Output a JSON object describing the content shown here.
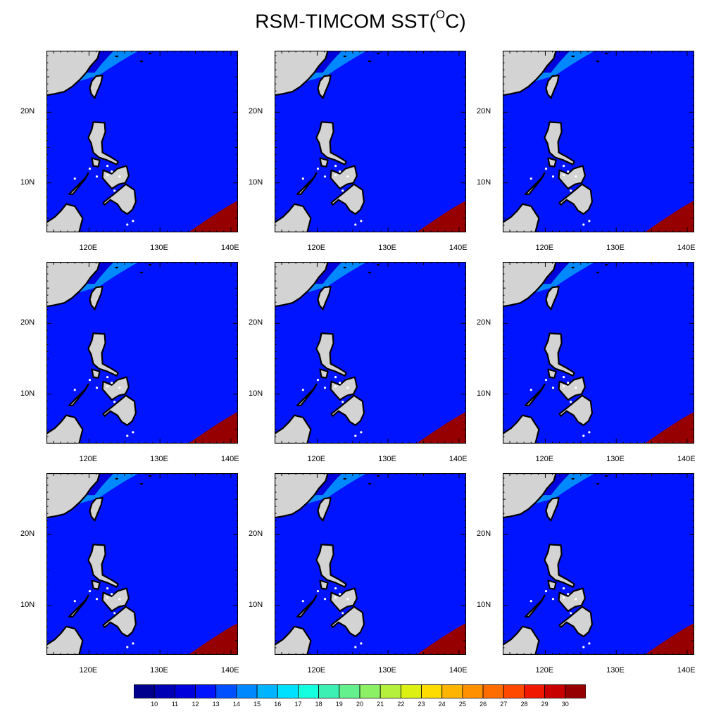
{
  "title_main": "RSM-TIMCOM SST(",
  "title_sup": "O",
  "title_end": "C)",
  "lat_labels": [
    "20N",
    "10N"
  ],
  "lon_labels": [
    "120E",
    "130E",
    "140E"
  ],
  "colorbar": {
    "labels": [
      "10",
      "11",
      "12",
      "13",
      "14",
      "15",
      "16",
      "17",
      "18",
      "19",
      "20",
      "21",
      "22",
      "23",
      "24",
      "25",
      "26",
      "27",
      "28",
      "29",
      "30"
    ],
    "colors": [
      "#00008c",
      "#0000b4",
      "#0000dc",
      "#0014ff",
      "#0050ff",
      "#0088ff",
      "#00b4ff",
      "#00e0ff",
      "#14ffe0",
      "#3cf0b4",
      "#64f08c",
      "#8cf064",
      "#b4f03c",
      "#dcf014",
      "#ffdc00",
      "#ffb400",
      "#ff9000",
      "#ff6c00",
      "#ff4800",
      "#f01800",
      "#c80000",
      "#960000"
    ]
  },
  "map_colors": {
    "land": "#d3d3d3",
    "coast": "#000000"
  },
  "panel_count": 9
}
